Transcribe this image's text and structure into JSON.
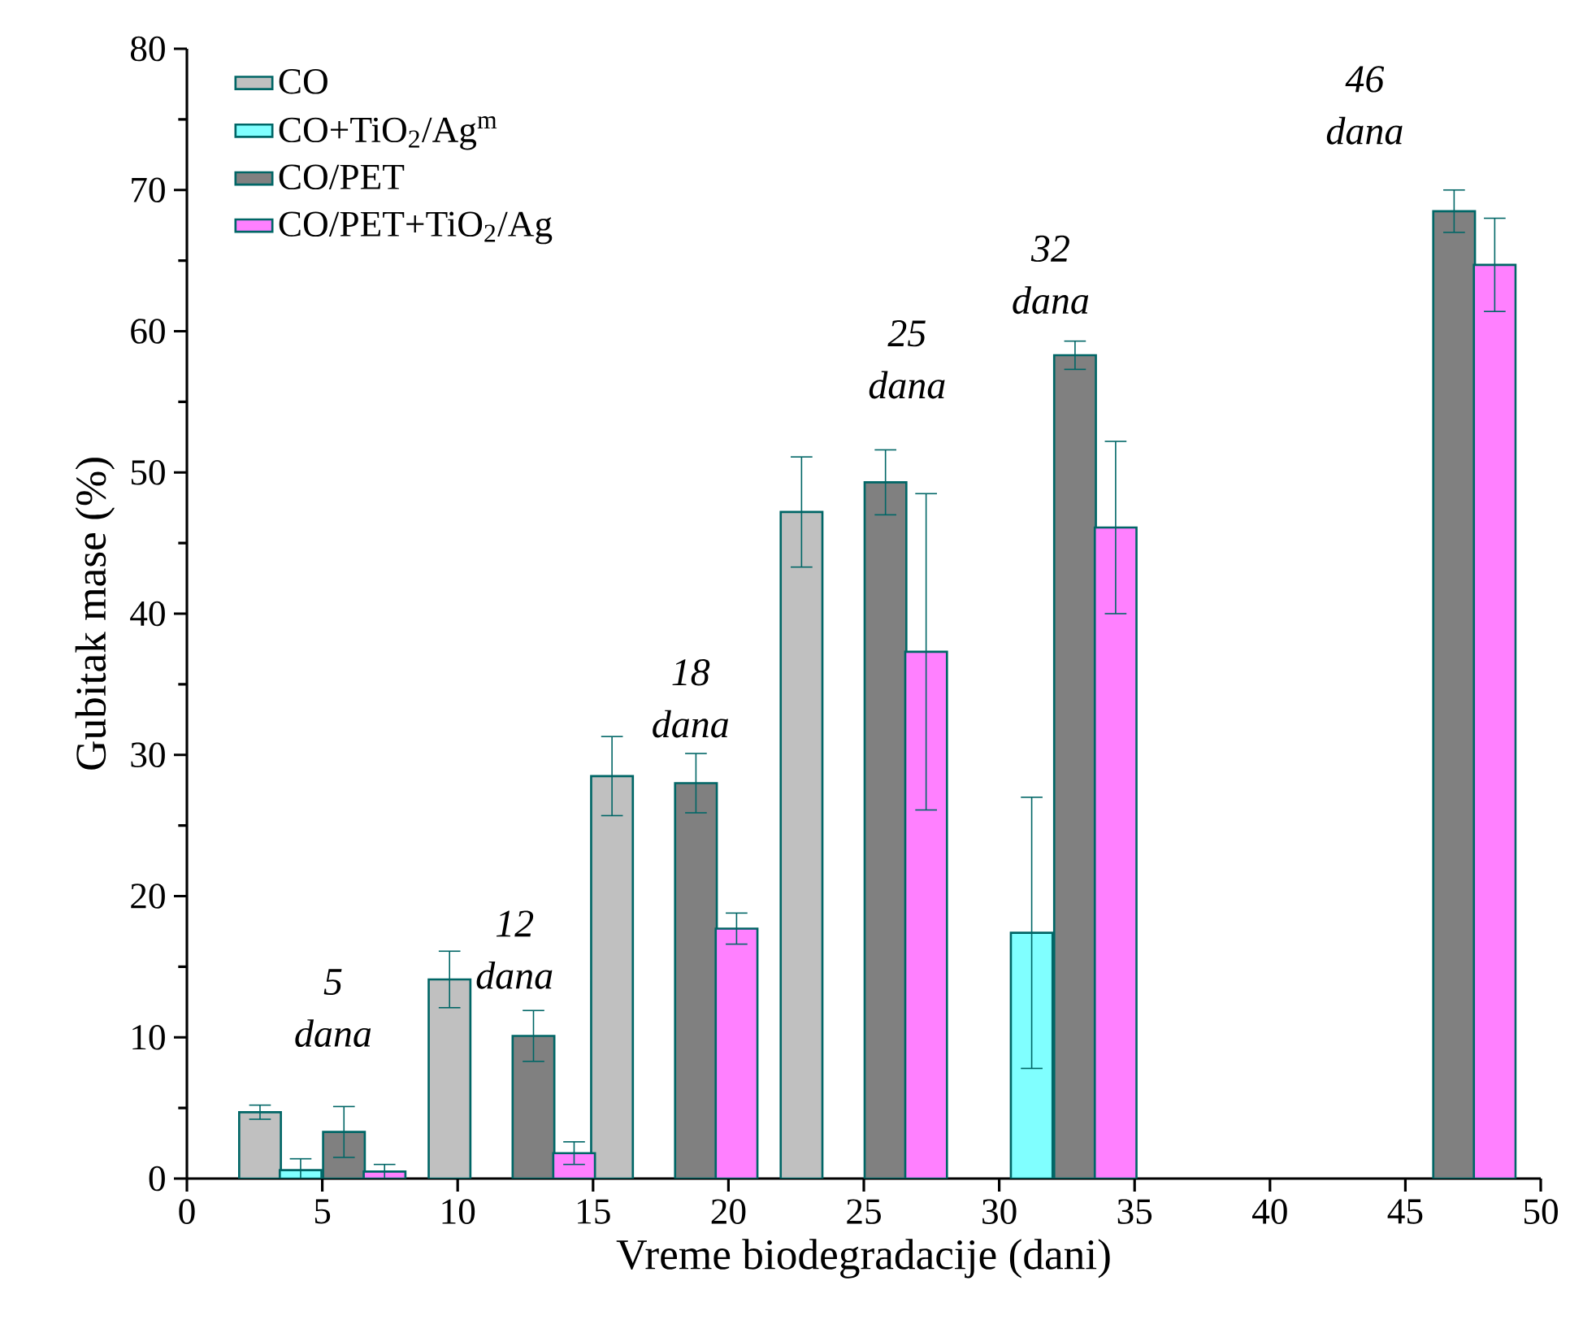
{
  "chart_data": {
    "type": "bar",
    "xlabel": "Vreme biodegradacije (dani)",
    "ylabel": "Gubitak mase (%)",
    "xlim": [
      0,
      50
    ],
    "xticks": [
      0,
      5,
      10,
      15,
      20,
      25,
      30,
      35,
      40,
      45,
      50
    ],
    "ylim": [
      0,
      80
    ],
    "yticks": [
      0,
      10,
      20,
      30,
      40,
      50,
      60,
      70,
      80
    ],
    "legend": "top left",
    "series": [
      {
        "name": "CO",
        "color": "#c0c0c0",
        "x": [
          2.7,
          9.7,
          15.7,
          22.7
        ],
        "values": [
          4.7,
          14.1,
          28.5,
          47.2
        ],
        "errors": [
          0.5,
          2.0,
          2.8,
          3.9
        ]
      },
      {
        "name": "CO+TiO$_{2}$/Ag$^{m}$",
        "color": "#80ffff",
        "x": [
          4.2,
          31.2
        ],
        "values": [
          0.6,
          17.4
        ],
        "errors": [
          0.8,
          9.6
        ]
      },
      {
        "name": "CO/PET",
        "color": "#808080",
        "x": [
          5.8,
          12.8,
          18.8,
          25.8,
          32.8,
          46.8
        ],
        "values": [
          3.3,
          10.1,
          28.0,
          49.3,
          58.3,
          68.5
        ],
        "errors": [
          1.8,
          1.8,
          2.1,
          2.3,
          1.0,
          1.5
        ]
      },
      {
        "name": "CO/PET+TiO$_{2}$/Ag",
        "color": "#ff80ff",
        "x": [
          7.3,
          14.3,
          20.3,
          27.3,
          34.3,
          48.3
        ],
        "values": [
          0.5,
          1.8,
          17.7,
          37.3,
          46.1,
          64.7
        ],
        "errors": [
          0.5,
          0.8,
          1.1,
          11.2,
          6.1,
          3.3
        ]
      }
    ],
    "annotations": [
      "5 dana",
      "12 dana",
      "18 dana",
      "25 dana",
      "32 dana",
      "46 dana"
    ]
  }
}
